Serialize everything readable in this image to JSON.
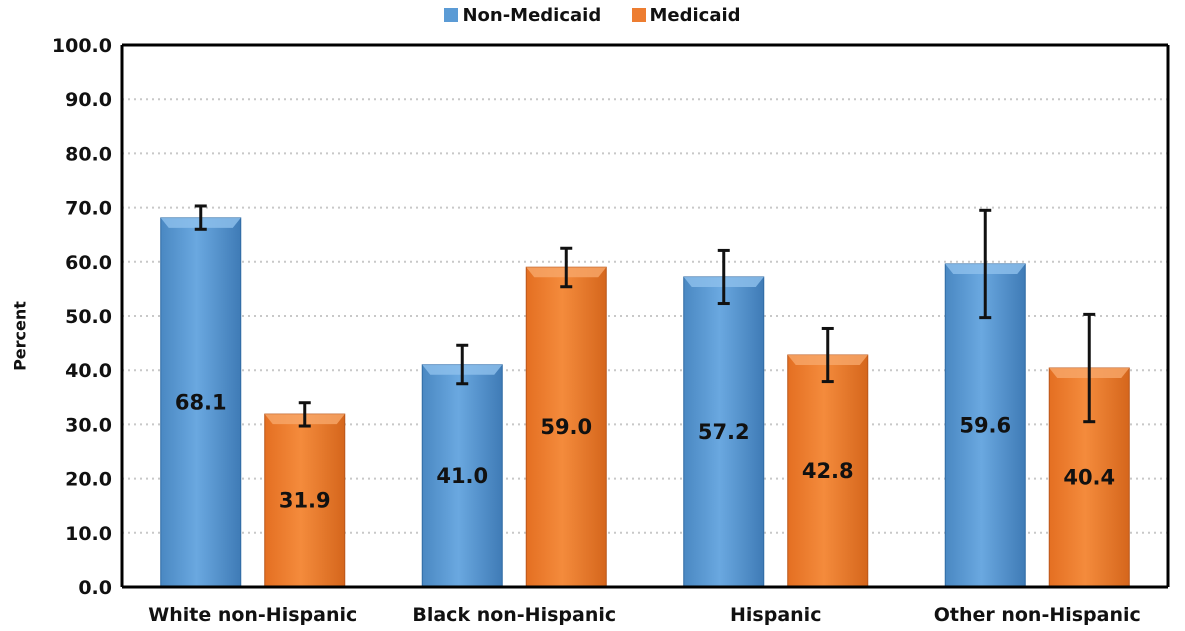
{
  "chart_data": {
    "type": "bar",
    "categories": [
      "White non-Hispanic",
      "Black non-Hispanic",
      "Hispanic",
      "Other non-Hispanic"
    ],
    "series": [
      {
        "name": "Non-Medicaid",
        "color": "#5b9bd5",
        "values": [
          68.1,
          41.0,
          57.2,
          59.6
        ],
        "error_low": [
          66.0,
          37.5,
          52.3,
          49.7
        ],
        "error_high": [
          70.3,
          44.6,
          62.1,
          69.5
        ]
      },
      {
        "name": "Medicaid",
        "color": "#ed7d31",
        "values": [
          31.9,
          59.0,
          42.8,
          40.4
        ],
        "error_low": [
          29.7,
          55.4,
          37.9,
          30.5
        ],
        "error_high": [
          34.0,
          62.5,
          47.7,
          50.3
        ]
      }
    ],
    "title": "",
    "xlabel": "",
    "ylabel": "Percent",
    "ylim": [
      0,
      100
    ],
    "yticks": [
      "0.0",
      "10.0",
      "20.0",
      "30.0",
      "40.0",
      "50.0",
      "60.0",
      "70.0",
      "80.0",
      "90.0",
      "100.0"
    ],
    "grid": true,
    "legend_position": "top"
  }
}
